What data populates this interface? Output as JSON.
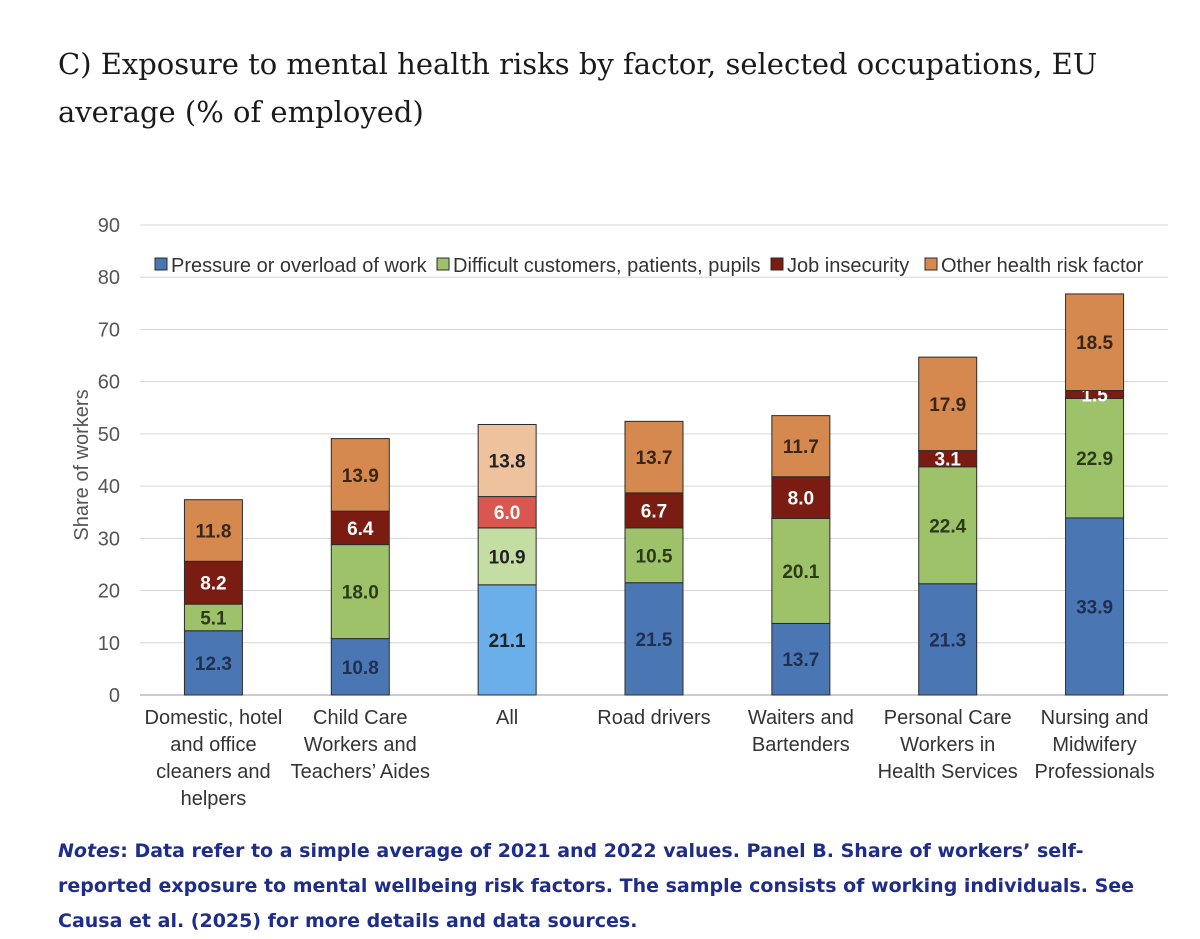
{
  "title": "C) Exposure to mental health risks by factor, selected occupations, EU average (% of employed)",
  "notes": {
    "label": "Notes",
    "text": ": Data refer to a simple average of 2021 and 2022 values. Panel B. Share of workers’ self-reported exposure to mental wellbeing risk factors. The sample consists of working individuals. See Causa et al. (2025) for more details and data sources."
  },
  "chart_data": {
    "type": "bar",
    "stacked": true,
    "ylabel": "Share of workers",
    "xlabel": "",
    "ylim": [
      0,
      90
    ],
    "yticks": [
      0,
      10,
      20,
      30,
      40,
      50,
      60,
      70,
      80,
      90
    ],
    "grid": true,
    "legend_position": "top",
    "highlight_category": "All",
    "categories": [
      [
        "Domestic, hotel",
        "and office",
        "cleaners and",
        "helpers"
      ],
      [
        "Child Care",
        "Workers and",
        "Teachers’ Aides"
      ],
      [
        "All"
      ],
      [
        "Road drivers"
      ],
      [
        "Waiters and",
        "Bartenders"
      ],
      [
        "Personal Care",
        "Workers in",
        "Health Services"
      ],
      [
        "Nursing and",
        "Midwifery",
        "Professionals"
      ]
    ],
    "series": [
      {
        "name": "Pressure or overload of work",
        "color": "#4a77b4",
        "highlight_color": "#6aaeea",
        "label_color": "#1f2f50",
        "values": [
          12.3,
          10.8,
          21.1,
          21.5,
          13.7,
          21.3,
          33.9
        ]
      },
      {
        "name": "Difficult customers, patients, pupils",
        "color": "#9dc26a",
        "highlight_color": "#c3dda3",
        "label_color": "#2c3a1a",
        "values": [
          5.1,
          18.0,
          10.9,
          10.5,
          20.1,
          22.4,
          22.9
        ]
      },
      {
        "name": "Job insecurity",
        "color": "#7b1c12",
        "highlight_color": "#d9574f",
        "label_color": "#ffffff",
        "values": [
          8.2,
          6.4,
          6.0,
          6.7,
          8.0,
          3.1,
          1.5
        ]
      },
      {
        "name": "Other health risk factor",
        "color": "#d5894f",
        "highlight_color": "#efc29e",
        "label_color": "#3a2616",
        "values": [
          11.8,
          13.9,
          13.8,
          13.7,
          11.7,
          17.9,
          18.5
        ]
      }
    ]
  }
}
